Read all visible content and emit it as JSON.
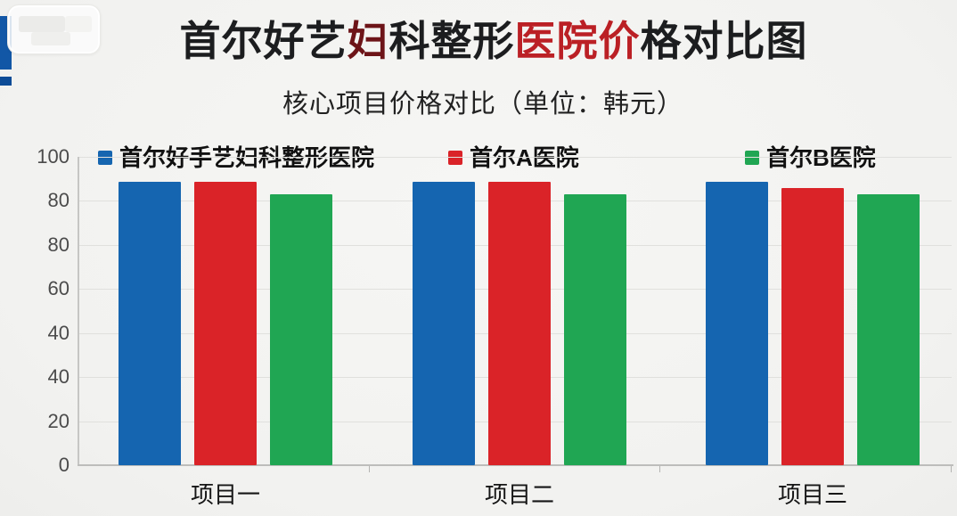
{
  "page": {
    "background_color": "#f3f3f1",
    "logo_color": "#1257a6"
  },
  "chart_data": {
    "type": "bar",
    "title": "首尔好艺妇科整形医院价格对比图",
    "title_segments": [
      {
        "text": "首尔好艺",
        "color": "#1c1d1f"
      },
      {
        "text": "妇",
        "color": "#6d1418"
      },
      {
        "text": "科整形",
        "color": "#1c1d1f"
      },
      {
        "text": "医院价",
        "color": "#bb2025"
      },
      {
        "text": "格对比图",
        "color": "#1c1d1f"
      }
    ],
    "subtitle": "核心项目价格对比（单位：韩元）",
    "categories": [
      "项目一",
      "项目二",
      "项目三"
    ],
    "series": [
      {
        "name": "首尔好手艺妇科整形医院",
        "color": "#1565b0",
        "values": [
          92,
          92,
          92
        ]
      },
      {
        "name": "首尔A医院",
        "color": "#da2328",
        "values": [
          92,
          92,
          90
        ]
      },
      {
        "name": "首尔B医院",
        "color": "#20a653",
        "values": [
          88,
          88,
          88
        ]
      }
    ],
    "y_tick_labels": [
      "100",
      "80",
      "80",
      "60",
      "40",
      "40",
      "20",
      "0"
    ],
    "ylim": [
      0,
      100
    ],
    "grid": true,
    "legend_position": "top"
  }
}
